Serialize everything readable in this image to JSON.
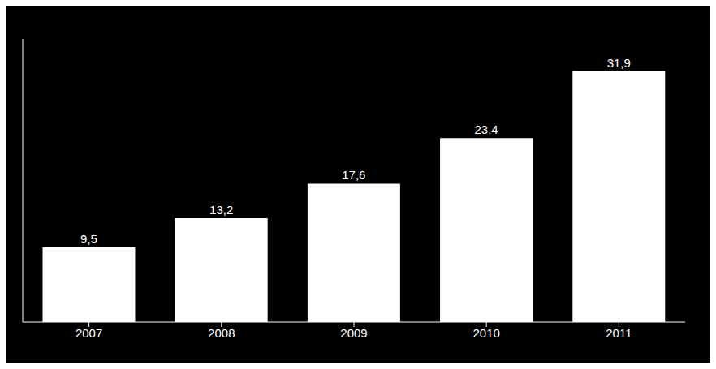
{
  "chart_data": {
    "type": "bar",
    "categories": [
      "2007",
      "2008",
      "2009",
      "2010",
      "2011"
    ],
    "values": [
      9.5,
      13.2,
      17.6,
      23.4,
      31.9
    ],
    "value_labels": [
      "9,5",
      "13,2",
      "17,6",
      "23,4",
      "31,9"
    ],
    "color": "#ffffff",
    "ylim": [
      0,
      36
    ],
    "data_labels": true,
    "tick_labels": "x",
    "grid": false
  }
}
